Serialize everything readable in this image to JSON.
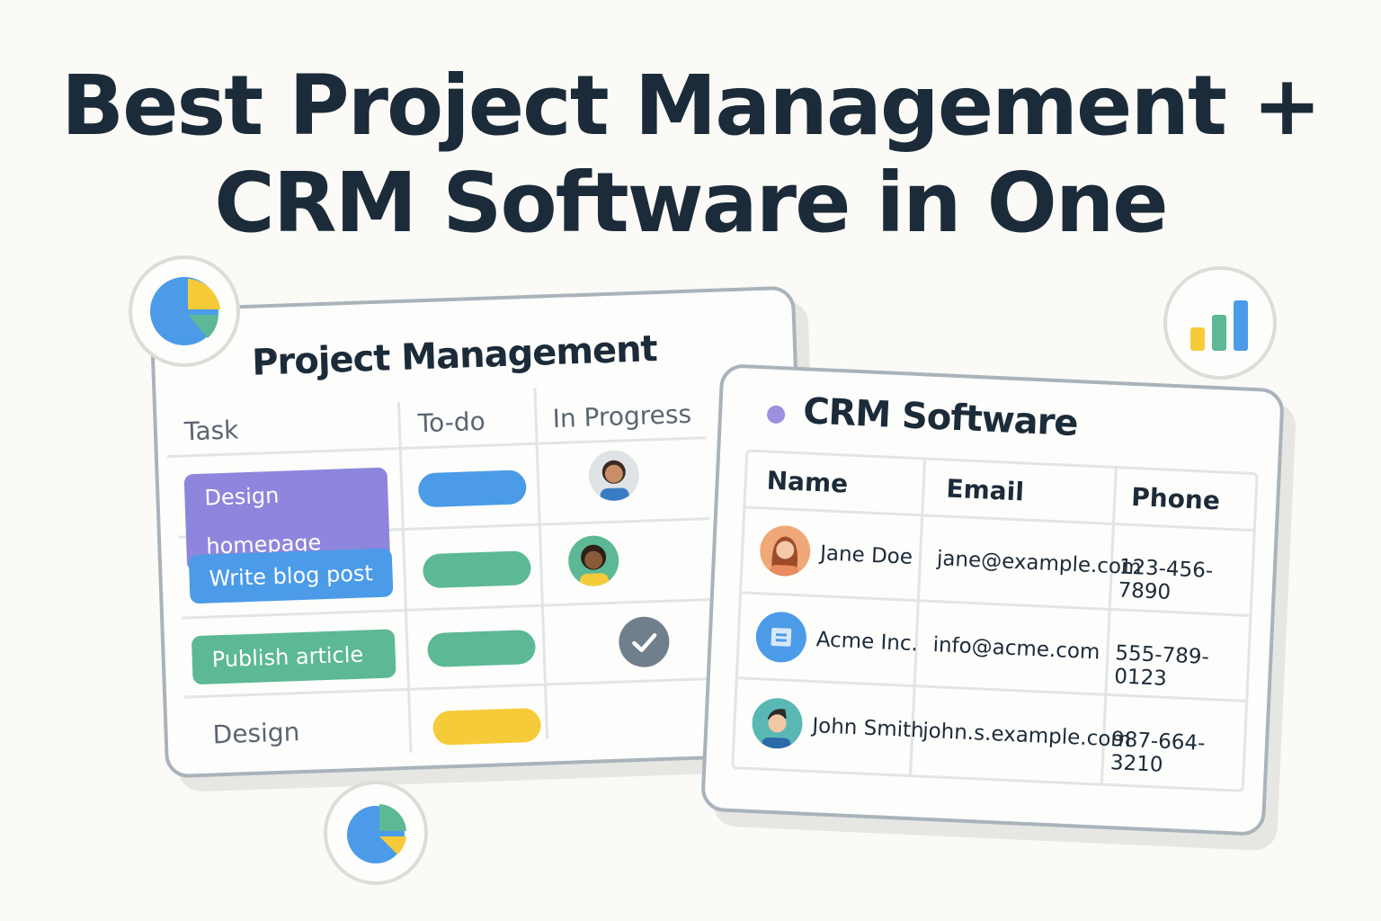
{
  "headline": {
    "line1": "Best Project Management +",
    "line2": "CRM Software in One"
  },
  "project_management": {
    "title": "Project Management",
    "columns": [
      "Task",
      "To-do",
      "In Progress"
    ],
    "rows": [
      {
        "task": "Design homepage",
        "task_color": "#8d86dc",
        "todo_color": "#4b9be8",
        "in_progress": "avatar-woman"
      },
      {
        "task": "Write blog post",
        "task_color": "#4b9be8",
        "todo_color": "#5cb895",
        "in_progress": "avatar-woman-2"
      },
      {
        "task": "Publish article",
        "task_color": "#5cb895",
        "todo_color": "#5cb895",
        "in_progress": "check-icon"
      },
      {
        "task": "Design",
        "task_color": "",
        "todo_color": "#f5cb3a",
        "in_progress": ""
      }
    ]
  },
  "crm": {
    "title": "CRM Software",
    "dot_color": "#9b8fe0",
    "columns": [
      "Name",
      "Email",
      "Phone"
    ],
    "rows": [
      {
        "name": "Jane Doe",
        "email": "jane@example.com",
        "phone": "123-456-7890",
        "avatar": "avatar-woman"
      },
      {
        "name": "Acme Inc.",
        "email": "info@acme.com",
        "phone": "555-789-0123",
        "avatar": "company-icon"
      },
      {
        "name": "John Smith",
        "email": "john.s.example.com",
        "phone": "987-664-3210",
        "avatar": "avatar-man"
      }
    ]
  },
  "badges": [
    "pie-chart-icon",
    "bar-chart-icon",
    "pie-chart-icon"
  ]
}
